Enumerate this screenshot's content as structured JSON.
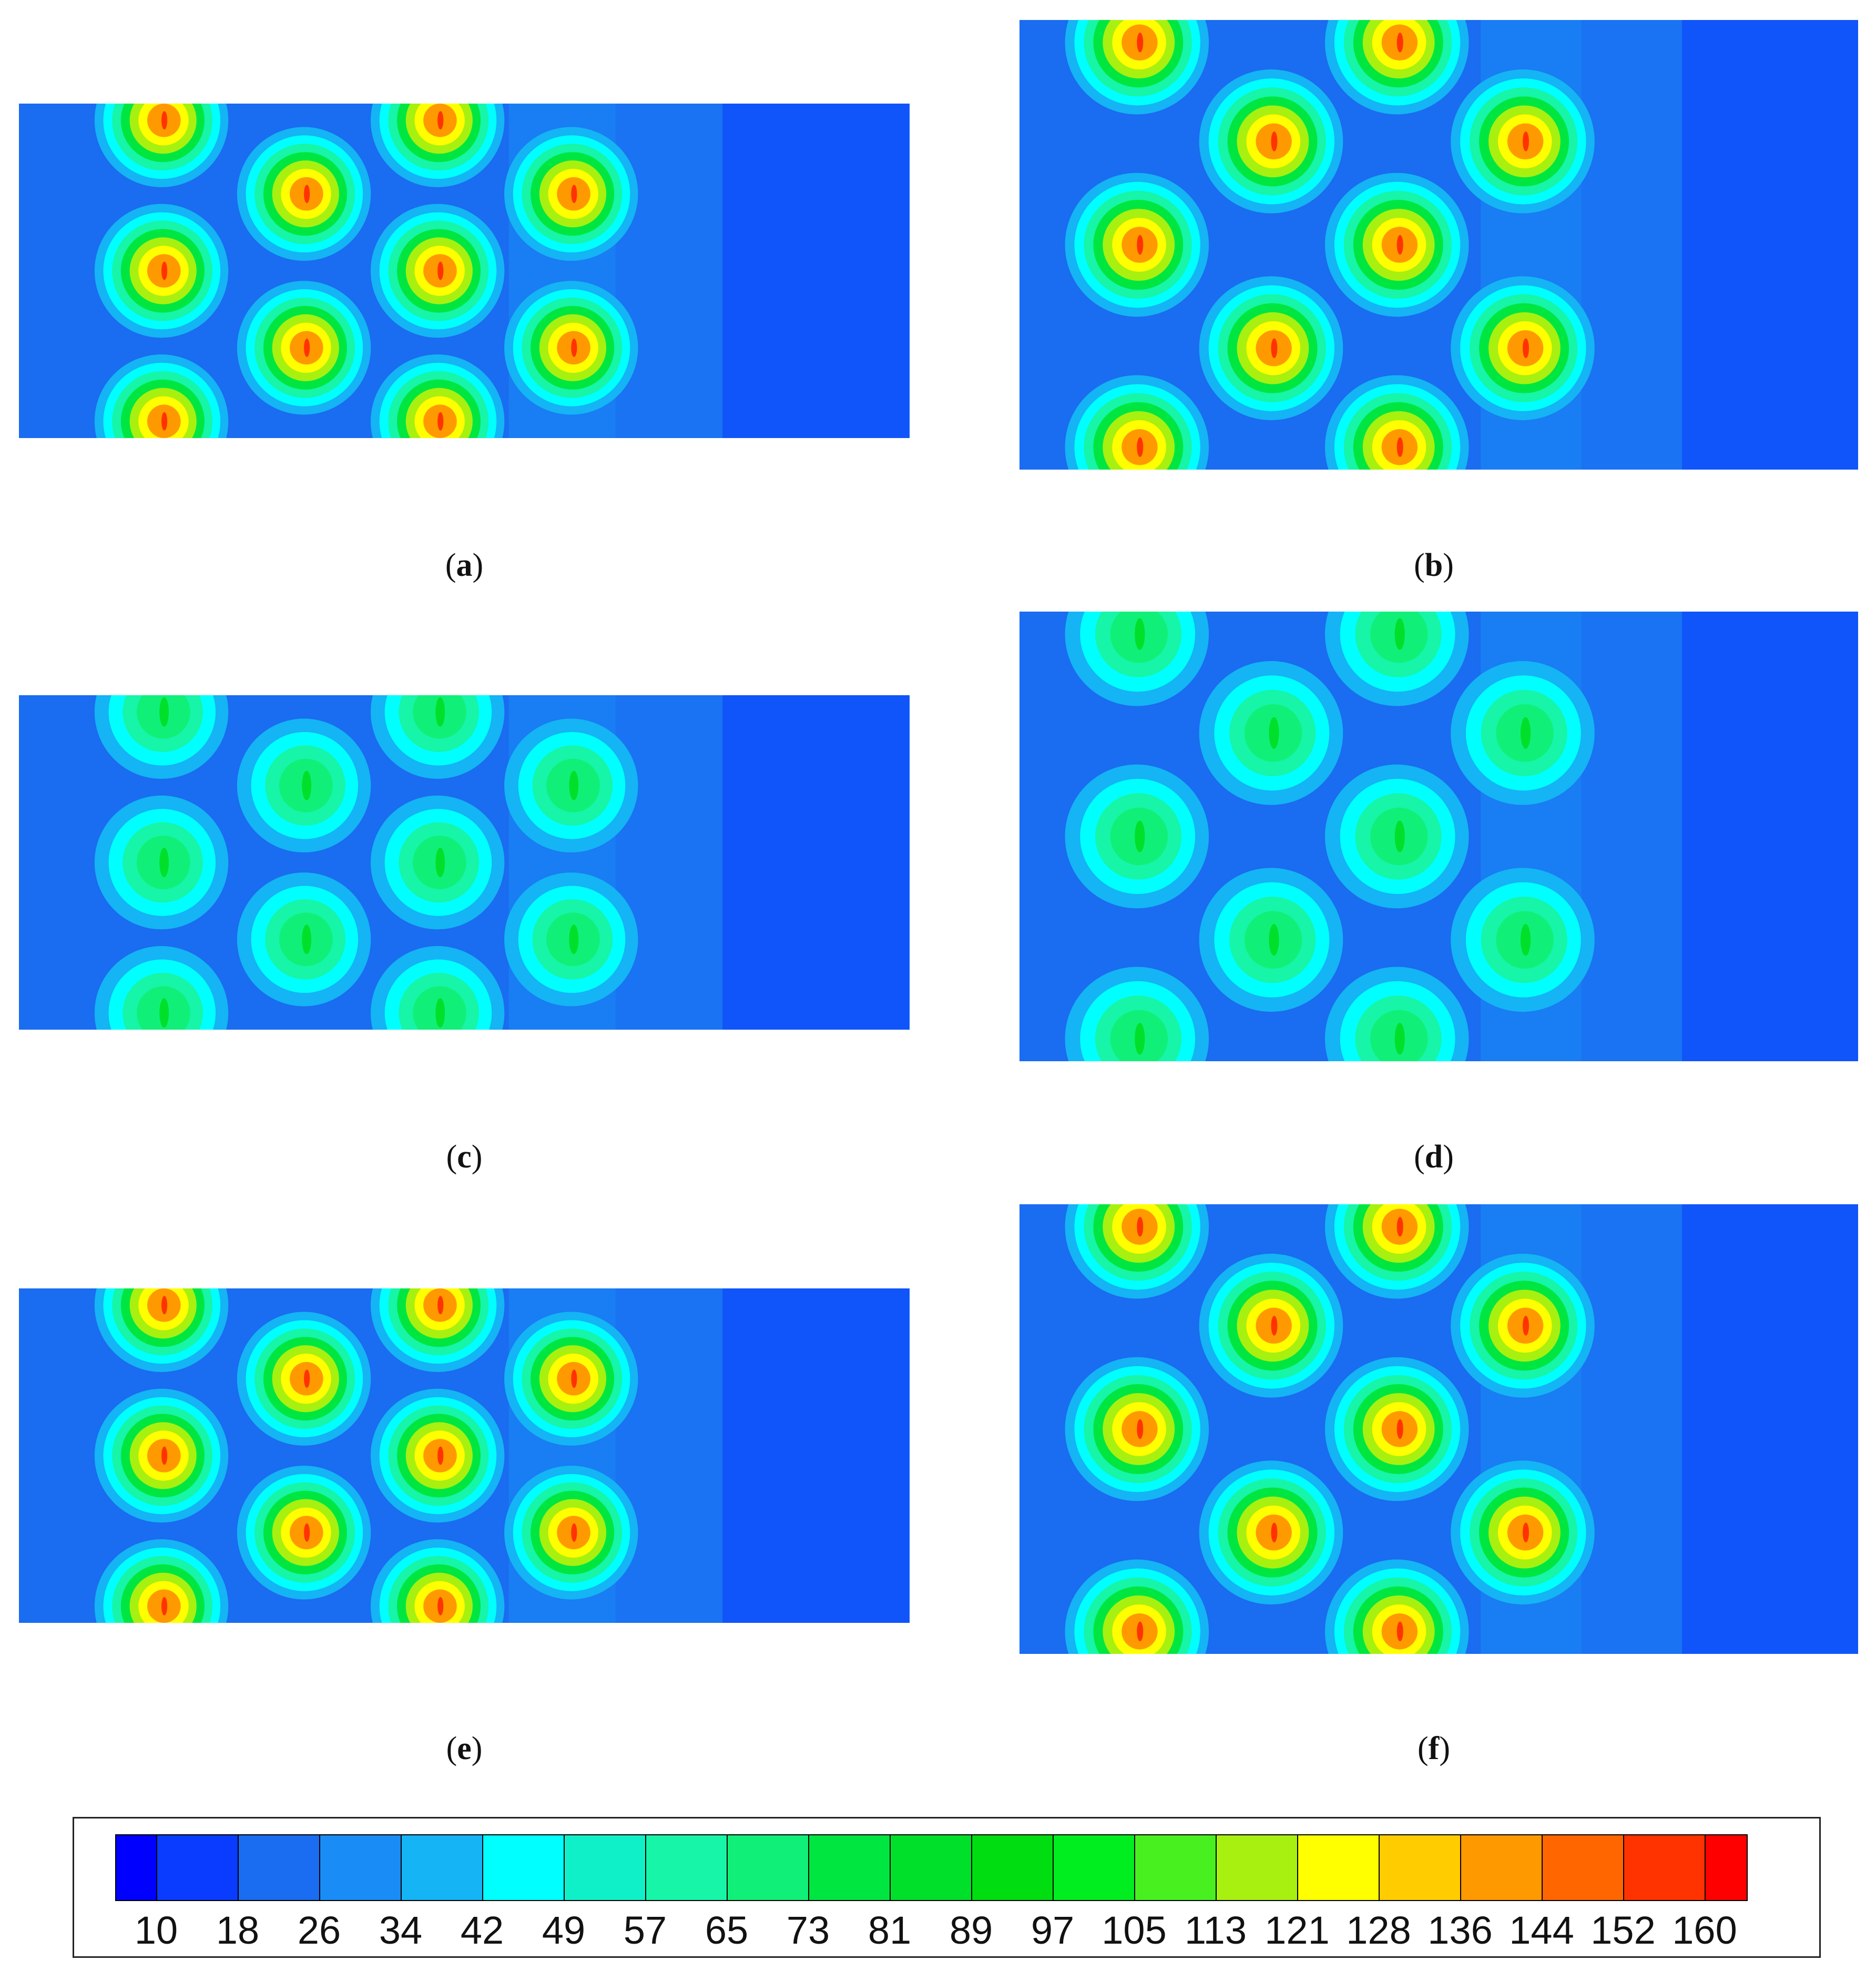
{
  "panels": [
    {
      "id": "a",
      "caption_letter": "a",
      "intensity": "high"
    },
    {
      "id": "b",
      "caption_letter": "b",
      "intensity": "high"
    },
    {
      "id": "c",
      "caption_letter": "c",
      "intensity": "low"
    },
    {
      "id": "d",
      "caption_letter": "d",
      "intensity": "low"
    },
    {
      "id": "e",
      "caption_letter": "e",
      "intensity": "high"
    },
    {
      "id": "f",
      "caption_letter": "f",
      "intensity": "high"
    }
  ],
  "legend": {
    "labels": [
      "10",
      "18",
      "26",
      "34",
      "42",
      "49",
      "57",
      "65",
      "73",
      "81",
      "89",
      "97",
      "105",
      "113",
      "121",
      "128",
      "136",
      "144",
      "152",
      "160"
    ],
    "colors": [
      "#0000ff",
      "#0a3cff",
      "#1a6cf0",
      "#1a8cf5",
      "#14b4f5",
      "#00ffff",
      "#10f0c8",
      "#16f5a8",
      "#10f078",
      "#00e640",
      "#00e02a",
      "#00dd10",
      "#00ee20",
      "#48f020",
      "#a8f010",
      "#ffff00",
      "#ffcc00",
      "#ff9900",
      "#ff6600",
      "#ff3300",
      "#ff0000"
    ]
  }
}
